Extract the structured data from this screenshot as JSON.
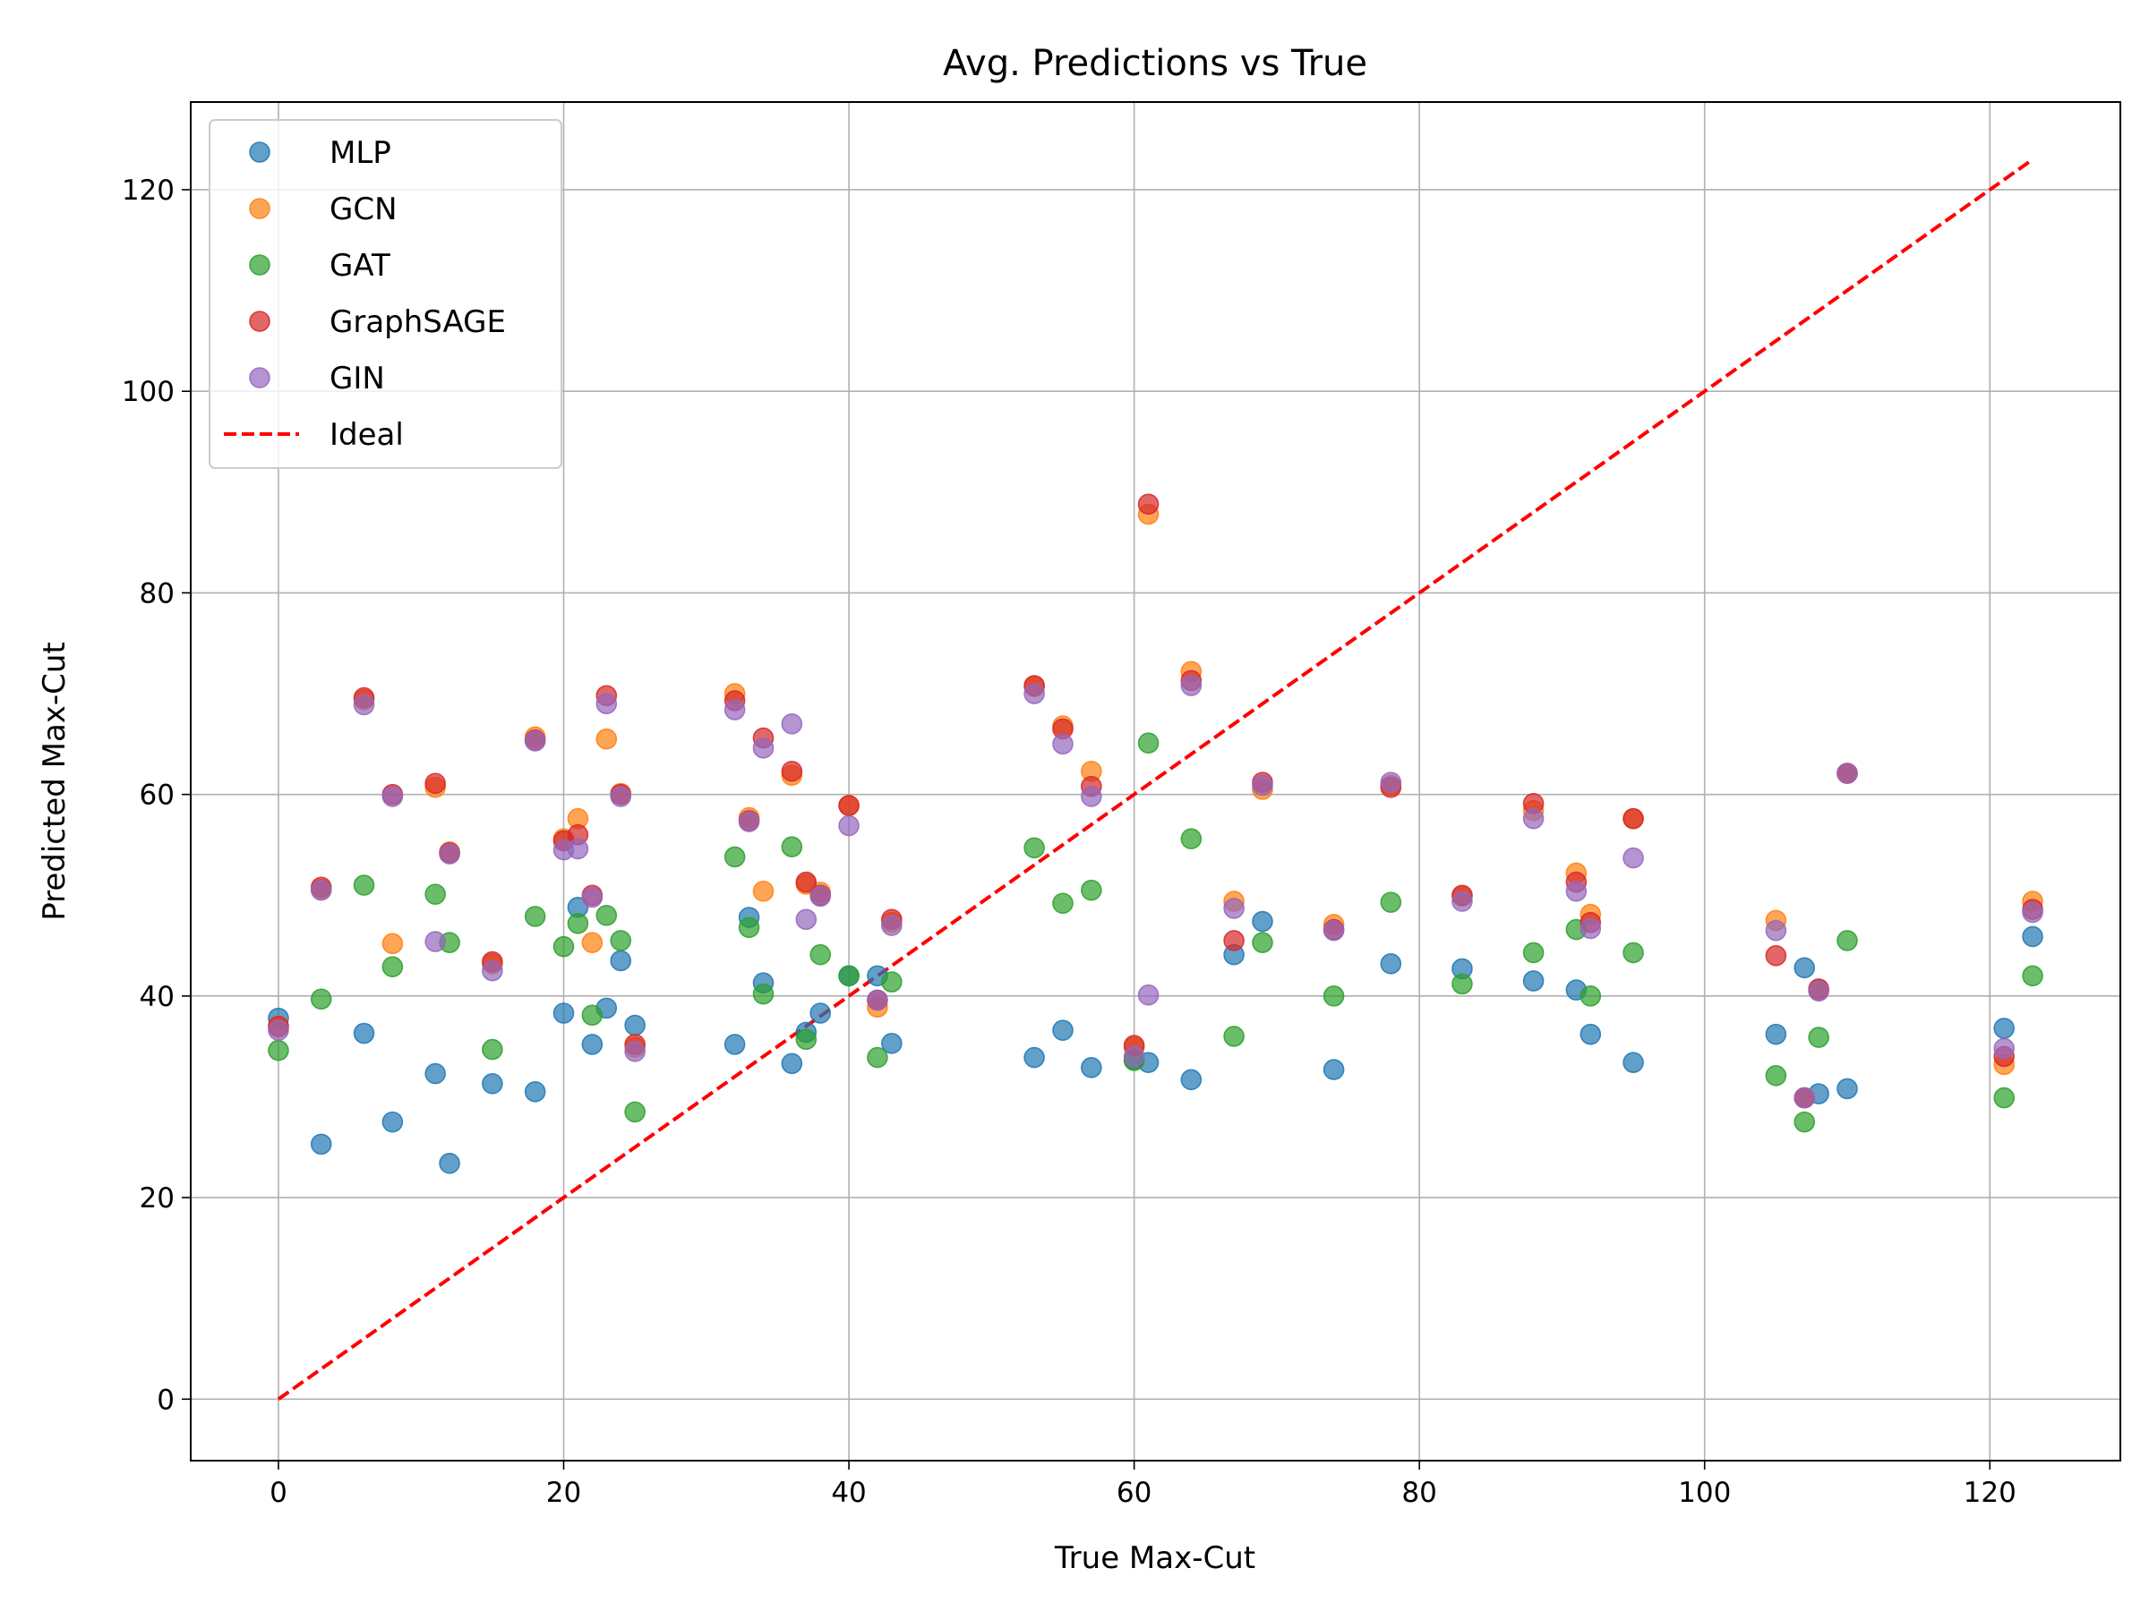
{
  "chart_data": {
    "type": "scatter",
    "title": "Avg. Predictions vs True",
    "xlabel": "True Max-Cut",
    "ylabel": "Predicted Max-Cut",
    "xlim": [
      -6.15,
      129.15
    ],
    "ylim": [
      -6.1,
      128.7
    ],
    "xticks": [
      0,
      20,
      40,
      60,
      80,
      100,
      120
    ],
    "yticks": [
      0,
      20,
      40,
      60,
      80,
      100,
      120
    ],
    "grid": true,
    "legend_position": "top-left",
    "x": [
      0,
      3,
      6,
      8,
      11,
      12,
      15,
      18,
      20,
      21,
      22,
      23,
      24,
      25,
      32,
      33,
      34,
      36,
      37,
      38,
      40,
      42,
      43,
      53,
      55,
      57,
      60,
      61,
      64,
      67,
      69,
      74,
      78,
      83,
      88,
      91,
      92,
      95,
      105,
      107,
      108,
      110,
      121,
      123
    ],
    "series": [
      {
        "name": "MLP",
        "color": "#1f77b4",
        "values": [
          37.8,
          25.3,
          36.3,
          27.5,
          32.3,
          23.4,
          31.3,
          30.5,
          38.3,
          48.8,
          35.2,
          38.8,
          43.5,
          37.1,
          35.2,
          47.8,
          41.3,
          33.3,
          36.4,
          38.3,
          42.0,
          42.0,
          35.3,
          33.9,
          36.6,
          32.9,
          33.7,
          33.4,
          31.7,
          44.1,
          47.4,
          32.7,
          43.2,
          42.7,
          41.5,
          40.6,
          36.2,
          33.4,
          36.2,
          42.8,
          30.3,
          30.8,
          36.8,
          45.9
        ]
      },
      {
        "name": "GCN",
        "color": "#ff7f0e",
        "values": [
          36.9,
          50.6,
          69.4,
          45.2,
          60.7,
          54.3,
          43.2,
          65.7,
          55.6,
          57.6,
          45.3,
          65.5,
          60.1,
          34.9,
          70.0,
          57.7,
          50.4,
          61.9,
          51.1,
          50.3,
          58.9,
          38.9,
          47.3,
          70.7,
          66.8,
          62.3,
          34.9,
          87.8,
          72.2,
          49.4,
          60.5,
          47.1,
          60.9,
          49.9,
          58.4,
          52.2,
          48.1,
          57.6,
          47.5,
          29.9,
          40.6,
          62.1,
          33.2,
          49.4
        ]
      },
      {
        "name": "GAT",
        "color": "#2ca02c",
        "values": [
          34.6,
          39.7,
          51.0,
          42.9,
          50.1,
          45.3,
          34.7,
          47.9,
          44.9,
          47.2,
          38.1,
          48.0,
          45.5,
          28.5,
          53.8,
          46.8,
          40.2,
          54.8,
          35.7,
          44.1,
          42.0,
          33.9,
          41.4,
          54.7,
          49.2,
          50.5,
          33.6,
          65.1,
          55.6,
          36.0,
          45.3,
          40.0,
          49.3,
          41.2,
          44.3,
          46.6,
          40.0,
          44.3,
          32.1,
          27.5,
          35.9,
          45.5,
          29.9,
          42.0
        ]
      },
      {
        "name": "GraphSAGE",
        "color": "#d62728",
        "values": [
          37.0,
          50.8,
          69.6,
          60.0,
          61.1,
          54.2,
          43.4,
          65.4,
          55.4,
          56.0,
          50.0,
          69.8,
          60.0,
          35.2,
          69.3,
          57.4,
          65.6,
          62.3,
          51.3,
          50.0,
          58.9,
          39.6,
          47.6,
          70.8,
          66.5,
          60.8,
          35.1,
          88.8,
          71.3,
          45.5,
          61.2,
          46.6,
          60.7,
          50.0,
          59.1,
          51.3,
          47.3,
          57.6,
          44.0,
          29.9,
          40.7,
          62.1,
          34.0,
          48.6
        ]
      },
      {
        "name": "GIN",
        "color": "#9467bd",
        "values": [
          36.6,
          50.5,
          68.9,
          59.8,
          45.4,
          54.1,
          42.5,
          65.3,
          54.5,
          54.6,
          49.8,
          69.0,
          59.8,
          34.5,
          68.4,
          57.3,
          64.6,
          67.0,
          47.6,
          49.9,
          56.9,
          39.6,
          47.0,
          70.0,
          65.0,
          59.8,
          34.0,
          40.1,
          70.8,
          48.7,
          60.9,
          46.5,
          61.2,
          49.4,
          57.6,
          50.4,
          46.7,
          53.7,
          46.5,
          29.9,
          40.5,
          62.1,
          34.8,
          48.3
        ]
      }
    ],
    "ideal_line": {
      "name": "Ideal",
      "color": "#ff0000",
      "from": [
        0,
        0
      ],
      "to": [
        123,
        123
      ]
    },
    "legend": [
      "MLP",
      "GCN",
      "GAT",
      "GraphSAGE",
      "GIN",
      "Ideal"
    ]
  }
}
